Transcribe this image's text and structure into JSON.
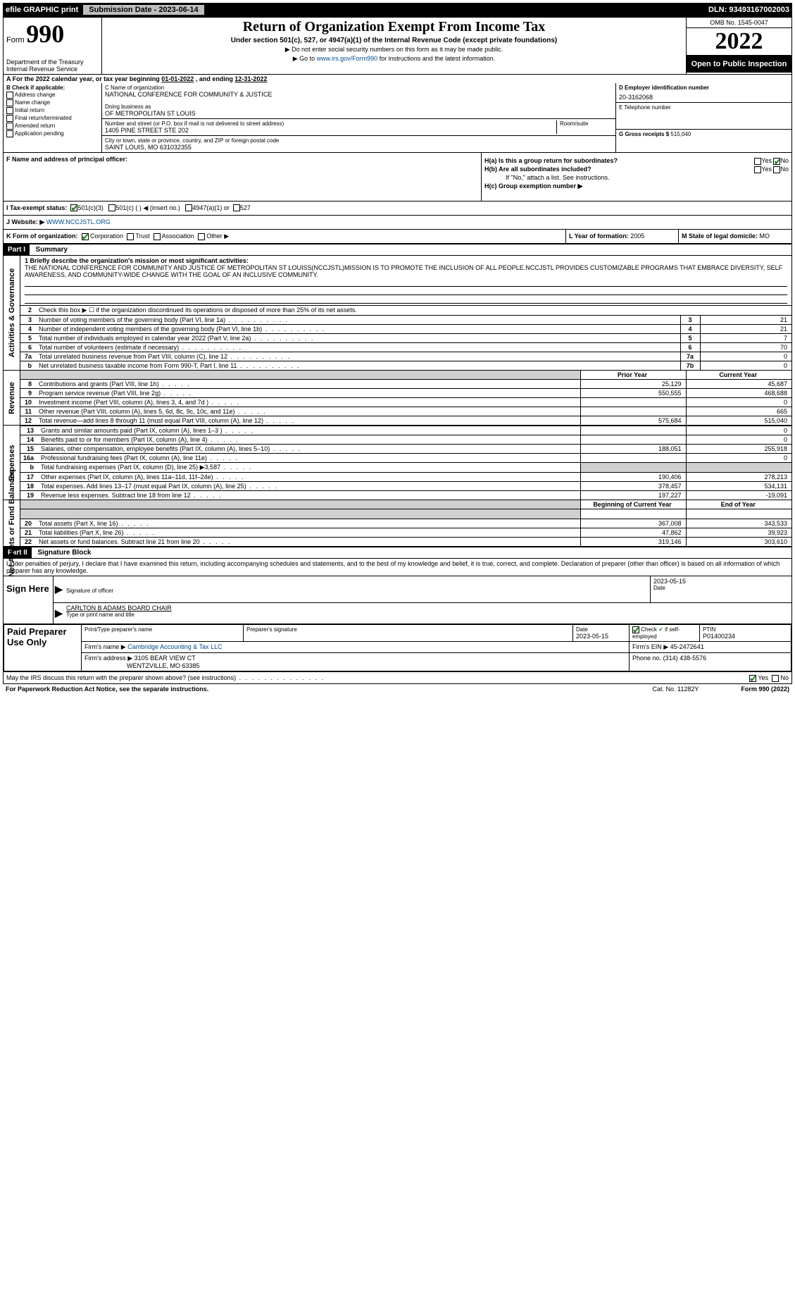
{
  "topbar": {
    "efile_label": "efile GRAPHIC print",
    "submission_label": "Submission Date - 2023-06-14",
    "dln": "DLN: 93493167002003"
  },
  "header": {
    "form_label": "Form",
    "form_num": "990",
    "title": "Return of Organization Exempt From Income Tax",
    "subtitle": "Under section 501(c), 527, or 4947(a)(1) of the Internal Revenue Code (except private foundations)",
    "instr1": "▶ Do not enter social security numbers on this form as it may be made public.",
    "instr2_prefix": "▶ Go to ",
    "instr2_link": "www.irs.gov/Form990",
    "instr2_suffix": " for instructions and the latest information.",
    "dept1": "Department of the Treasury",
    "dept2": "Internal Revenue Service",
    "omb": "OMB No. 1545-0047",
    "year": "2022",
    "open_pub": "Open to Public Inspection"
  },
  "period": {
    "text_a": "A For the 2022 calendar year, or tax year beginning ",
    "begin": "01-01-2022",
    "text_mid": "   , and ending ",
    "end": "12-31-2022"
  },
  "section_b": {
    "label": "B Check if applicable:",
    "items": [
      "Address change",
      "Name change",
      "Initial return",
      "Final return/terminated",
      "Amended return",
      "Application pending"
    ]
  },
  "section_c": {
    "label_name": "C Name of organization",
    "name": "NATIONAL CONFERENCE FOR COMMUNITY & JUSTICE",
    "dba_label": "Doing business as",
    "dba": "OF METROPOLITAN ST LOUIS",
    "street_label": "Number and street (or P.O. box if mail is not delivered to street address)",
    "room_label": "Room/suite",
    "street": "1405 PINE STREET STE 202",
    "city_label": "City or town, state or province, country, and ZIP or foreign postal code",
    "city": "SAINT LOUIS, MO  631032355"
  },
  "section_d": {
    "label": "D Employer identification number",
    "value": "20-3162068"
  },
  "section_e": {
    "label": "E Telephone number",
    "value": ""
  },
  "section_g": {
    "label": "G Gross receipts $",
    "value": "515,040"
  },
  "section_f": {
    "label": "F Name and address of principal officer:",
    "value": ""
  },
  "section_h": {
    "a_label": "H(a)  Is this a group return for subordinates?",
    "yes": "Yes",
    "no": "No",
    "b_label": "H(b)  Are all subordinates included?",
    "b_note": "If \"No,\" attach a list. See instructions.",
    "c_label": "H(c)  Group exemption number ▶"
  },
  "section_i": {
    "label": "I   Tax-exempt status:",
    "opt1": "501(c)(3)",
    "opt2": "501(c) (   ) ◀ (insert no.)",
    "opt3": "4947(a)(1) or",
    "opt4": "527"
  },
  "section_j": {
    "label": "J   Website: ▶",
    "value": "WWW.NCCJSTL.ORG"
  },
  "section_k": {
    "label": "K Form of organization:",
    "opts": [
      "Corporation",
      "Trust",
      "Association",
      "Other ▶"
    ]
  },
  "section_l": {
    "label": "L Year of formation:",
    "value": "2005"
  },
  "section_m": {
    "label": "M State of legal domicile:",
    "value": "MO"
  },
  "part1": {
    "header": "Part I",
    "title": "Summary",
    "line1_label": "1   Briefly describe the organization's mission or most significant activities:",
    "mission": "THE NATIONAL CONFERENCE FOR COMMUNITY AND JUSTICE OF METROPOLITAN ST LOUISS(NCCJSTL)MISSION IS TO PROMOTE THE INCLUSION OF ALL PEOPLE.NCCJSTL PROVIDES CUSTOMIZABLE PROGRAMS THAT EMBRACE DIVERSITY, SELF AWARENESS, AND COMMUNITY-WIDE CHANGE WITH THE GOAL OF AN INCLUSIVE COMMUNITY.",
    "line2": "Check this box ▶ ☐  if the organization discontinued its operations or disposed of more than 25% of its net assets.",
    "rows_gov": [
      {
        "n": "3",
        "desc": "Number of voting members of the governing body (Part VI, line 1a)",
        "box": "3",
        "val": "21"
      },
      {
        "n": "4",
        "desc": "Number of independent voting members of the governing body (Part VI, line 1b)",
        "box": "4",
        "val": "21"
      },
      {
        "n": "5",
        "desc": "Total number of individuals employed in calendar year 2022 (Part V, line 2a)",
        "box": "5",
        "val": "7"
      },
      {
        "n": "6",
        "desc": "Total number of volunteers (estimate if necessary)",
        "box": "6",
        "val": "70"
      },
      {
        "n": "7a",
        "desc": "Total unrelated business revenue from Part VIII, column (C), line 12",
        "box": "7a",
        "val": "0"
      },
      {
        "n": "b",
        "desc": "Net unrelated business taxable income from Form 990-T, Part I, line 11",
        "box": "7b",
        "val": "0"
      }
    ],
    "prior_hdr": "Prior Year",
    "curr_hdr": "Current Year",
    "rows_rev": [
      {
        "n": "8",
        "desc": "Contributions and grants (Part VIII, line 1h)",
        "prior": "25,129",
        "curr": "45,687"
      },
      {
        "n": "9",
        "desc": "Program service revenue (Part VIII, line 2g)",
        "prior": "550,555",
        "curr": "468,688"
      },
      {
        "n": "10",
        "desc": "Investment income (Part VIII, column (A), lines 3, 4, and 7d )",
        "prior": "",
        "curr": "0"
      },
      {
        "n": "11",
        "desc": "Other revenue (Part VIII, column (A), lines 5, 6d, 8c, 9c, 10c, and 11e)",
        "prior": "",
        "curr": "665"
      },
      {
        "n": "12",
        "desc": "Total revenue—add lines 8 through 11 (must equal Part VIII, column (A), line 12)",
        "prior": "575,684",
        "curr": "515,040"
      }
    ],
    "rows_exp": [
      {
        "n": "13",
        "desc": "Grants and similar amounts paid (Part IX, column (A), lines 1–3 )",
        "prior": "",
        "curr": "0"
      },
      {
        "n": "14",
        "desc": "Benefits paid to or for members (Part IX, column (A), line 4)",
        "prior": "",
        "curr": "0"
      },
      {
        "n": "15",
        "desc": "Salaries, other compensation, employee benefits (Part IX, column (A), lines 5–10)",
        "prior": "188,051",
        "curr": "255,918"
      },
      {
        "n": "16a",
        "desc": "Professional fundraising fees (Part IX, column (A), line 11e)",
        "prior": "",
        "curr": "0"
      },
      {
        "n": "b",
        "desc": "Total fundraising expenses (Part IX, column (D), line 25) ▶3,587",
        "prior": "shade",
        "curr": "shade"
      },
      {
        "n": "17",
        "desc": "Other expenses (Part IX, column (A), lines 11a–11d, 11f–24e)",
        "prior": "190,406",
        "curr": "278,213"
      },
      {
        "n": "18",
        "desc": "Total expenses. Add lines 13–17 (must equal Part IX, column (A), line 25)",
        "prior": "378,457",
        "curr": "534,131"
      },
      {
        "n": "19",
        "desc": "Revenue less expenses. Subtract line 18 from line 12",
        "prior": "197,227",
        "curr": "-19,091"
      }
    ],
    "begin_hdr": "Beginning of Current Year",
    "end_hdr": "End of Year",
    "rows_net": [
      {
        "n": "20",
        "desc": "Total assets (Part X, line 16)",
        "prior": "367,008",
        "curr": "343,533"
      },
      {
        "n": "21",
        "desc": "Total liabilities (Part X, line 26)",
        "prior": "47,862",
        "curr": "39,923"
      },
      {
        "n": "22",
        "desc": "Net assets or fund balances. Subtract line 21 from line 20",
        "prior": "319,146",
        "curr": "303,610"
      }
    ],
    "vlabels": {
      "gov": "Activities & Governance",
      "rev": "Revenue",
      "exp": "Expenses",
      "net": "Net Assets or Fund Balances"
    }
  },
  "part2": {
    "header": "Part II",
    "title": "Signature Block",
    "penalty": "Under penalties of perjury, I declare that I have examined this return, including accompanying schedules and statements, and to the best of my knowledge and belief, it is true, correct, and complete. Declaration of preparer (other than officer) is based on all information of which preparer has any knowledge.",
    "sign_here": "Sign Here",
    "sig_officer": "Signature of officer",
    "date": "Date",
    "date_val": "2023-05-15",
    "name_title": "CARLTON B ADAMS  BOARD CHAIR",
    "type_name": "Type or print name and title",
    "paid": "Paid Preparer Use Only",
    "prep_name_label": "Print/Type preparer's name",
    "prep_sig_label": "Preparer's signature",
    "prep_date": "2023-05-15",
    "check_self": "Check ☑ if self-employed",
    "ptin_label": "PTIN",
    "ptin": "P01400234",
    "firm_name_label": "Firm's name    ▶",
    "firm_name": "Cambridge Accounting & Tax LLC",
    "firm_ein_label": "Firm's EIN ▶",
    "firm_ein": "45-2472641",
    "firm_addr_label": "Firm's address ▶",
    "firm_addr1": "3105 BEAR VIEW CT",
    "firm_addr2": "WENTZVILLE, MO  63385",
    "phone_label": "Phone no.",
    "phone": "(314) 438-5576",
    "may_irs": "May the IRS discuss this return with the preparer shown above? (see instructions)"
  },
  "footer": {
    "pra": "For Paperwork Reduction Act Notice, see the separate instructions.",
    "cat": "Cat. No. 11282Y",
    "form": "Form 990 (2022)"
  }
}
